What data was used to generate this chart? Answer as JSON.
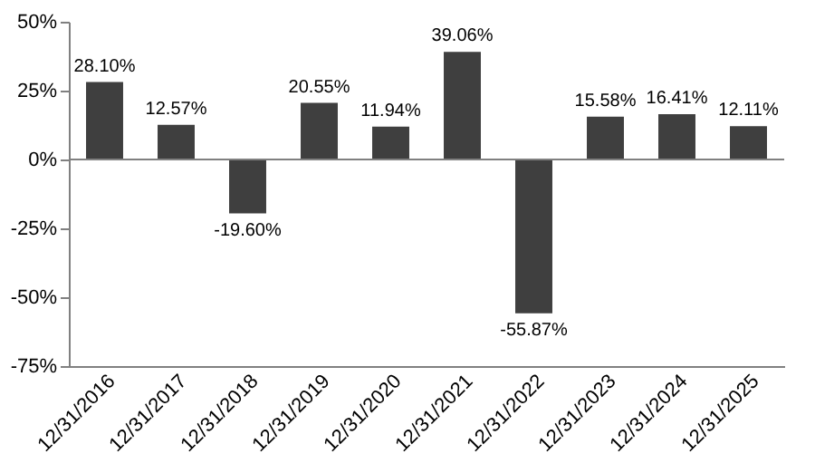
{
  "chart_data": {
    "type": "bar",
    "categories": [
      "12/31/2016",
      "12/31/2017",
      "12/31/2018",
      "12/31/2019",
      "12/31/2020",
      "12/31/2021",
      "12/31/2022",
      "12/31/2023",
      "12/31/2024",
      "12/31/2025"
    ],
    "values": [
      28.1,
      12.57,
      -19.6,
      20.55,
      11.94,
      39.06,
      -55.87,
      15.58,
      16.41,
      12.11
    ],
    "value_labels": [
      "28.10%",
      "12.57%",
      "-19.60%",
      "20.55%",
      "11.94%",
      "39.06%",
      "-55.87%",
      "15.58%",
      "16.41%",
      "12.11%"
    ],
    "color": "#3f3f3f",
    "ylim": [
      -75,
      50
    ],
    "yticks": [
      {
        "value": 50,
        "label": "50%"
      },
      {
        "value": 25,
        "label": "25%"
      },
      {
        "value": 0,
        "label": "0%"
      },
      {
        "value": -25,
        "label": "-25%"
      },
      {
        "value": -50,
        "label": "-50%"
      },
      {
        "value": -75,
        "label": "-75%"
      }
    ],
    "ref_lines": [
      {
        "axis": "y",
        "value": 0,
        "color": "#808080"
      }
    ],
    "grid": false
  }
}
